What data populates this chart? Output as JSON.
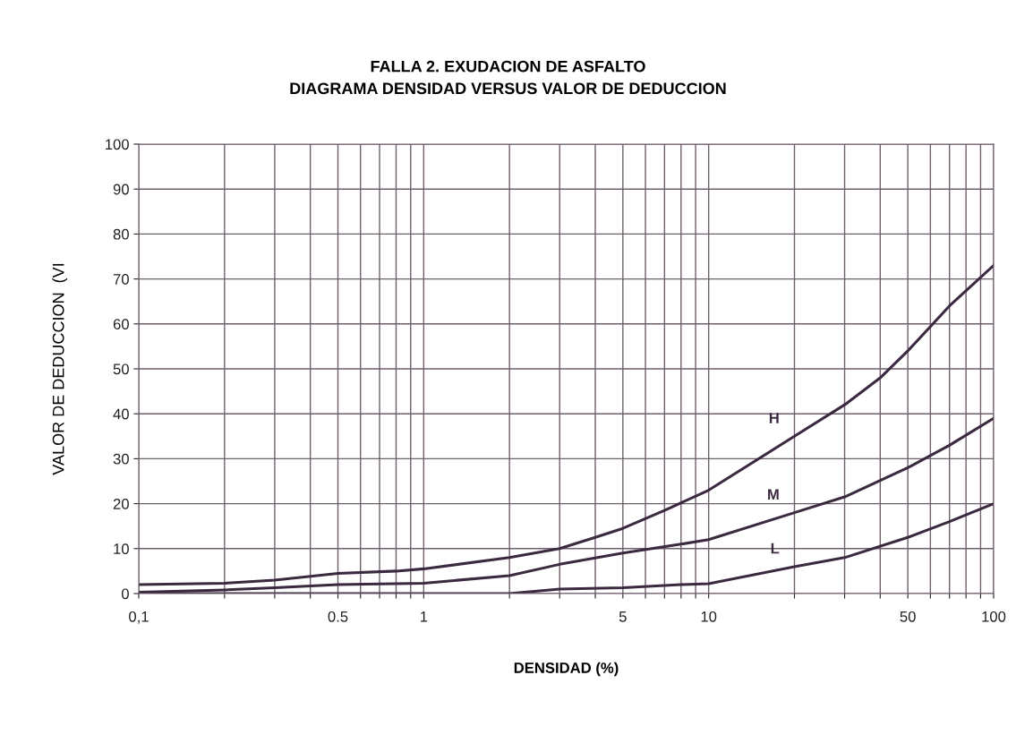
{
  "chart_data": {
    "type": "line",
    "title": "FALLA 2. EXUDACION DE ASFALTO\nDIAGRAMA DENSIDAD VERSUS VALOR DE DEDUCCION",
    "xlabel": "DENSIDAD (%)",
    "ylabel": "VALOR DE DEDUCCION  (VI",
    "log": "x",
    "grid": true,
    "marker": "none",
    "line_style": "solid",
    "xlim": [
      0.1,
      100
    ],
    "ylim": [
      0,
      100
    ],
    "xticks": [
      {
        "value": 0.1,
        "label": "0,1"
      },
      {
        "value": 0.2,
        "label": null
      },
      {
        "value": 0.3,
        "label": null
      },
      {
        "value": 0.4,
        "label": null
      },
      {
        "value": 0.5,
        "label": "0.5"
      },
      {
        "value": 0.6,
        "label": null
      },
      {
        "value": 0.7,
        "label": null
      },
      {
        "value": 0.8,
        "label": null
      },
      {
        "value": 0.9,
        "label": null
      },
      1,
      {
        "value": 2,
        "label": null
      },
      {
        "value": 3,
        "label": null
      },
      {
        "value": 4,
        "label": null
      },
      5,
      {
        "value": 6,
        "label": null
      },
      {
        "value": 7,
        "label": null
      },
      {
        "value": 8,
        "label": null
      },
      {
        "value": 9,
        "label": null
      },
      10,
      {
        "value": 20,
        "label": null
      },
      {
        "value": 30,
        "label": null
      },
      {
        "value": 40,
        "label": null
      },
      50,
      {
        "value": 60,
        "label": null
      },
      {
        "value": 70,
        "label": null
      },
      {
        "value": 80,
        "label": null
      },
      {
        "value": 90,
        "label": null
      },
      100
    ],
    "yticks": [
      0,
      10,
      20,
      30,
      40,
      50,
      60,
      70,
      80,
      90,
      100
    ],
    "series": [
      {
        "name": "H",
        "color": "#3b2a3f",
        "x": [
          0.1,
          0.2,
          0.3,
          0.5,
          0.8,
          1,
          2,
          3,
          4,
          5,
          7,
          10,
          20,
          30,
          40,
          50,
          70,
          100
        ],
        "values": [
          2,
          2.3,
          3,
          4.5,
          5,
          5.5,
          8,
          10,
          12.5,
          14.5,
          18.5,
          23,
          35,
          42,
          48,
          54,
          64,
          73
        ]
      },
      {
        "name": "M",
        "color": "#3b2a3f",
        "x": [
          0.1,
          0.2,
          0.3,
          0.5,
          1,
          2,
          3,
          5,
          8,
          10,
          20,
          30,
          50,
          70,
          100
        ],
        "values": [
          0.3,
          0.8,
          1.3,
          2,
          2.3,
          4,
          6.5,
          9,
          11,
          12,
          18,
          21.5,
          28,
          33,
          39
        ]
      },
      {
        "name": "L",
        "color": "#3b2a3f",
        "x": [
          0.1,
          0.5,
          2,
          3,
          5,
          8,
          10,
          20,
          30,
          50,
          70,
          100
        ],
        "values": [
          0,
          0,
          0,
          1,
          1.3,
          2,
          2.2,
          6,
          8,
          12.5,
          16,
          20
        ]
      }
    ]
  }
}
